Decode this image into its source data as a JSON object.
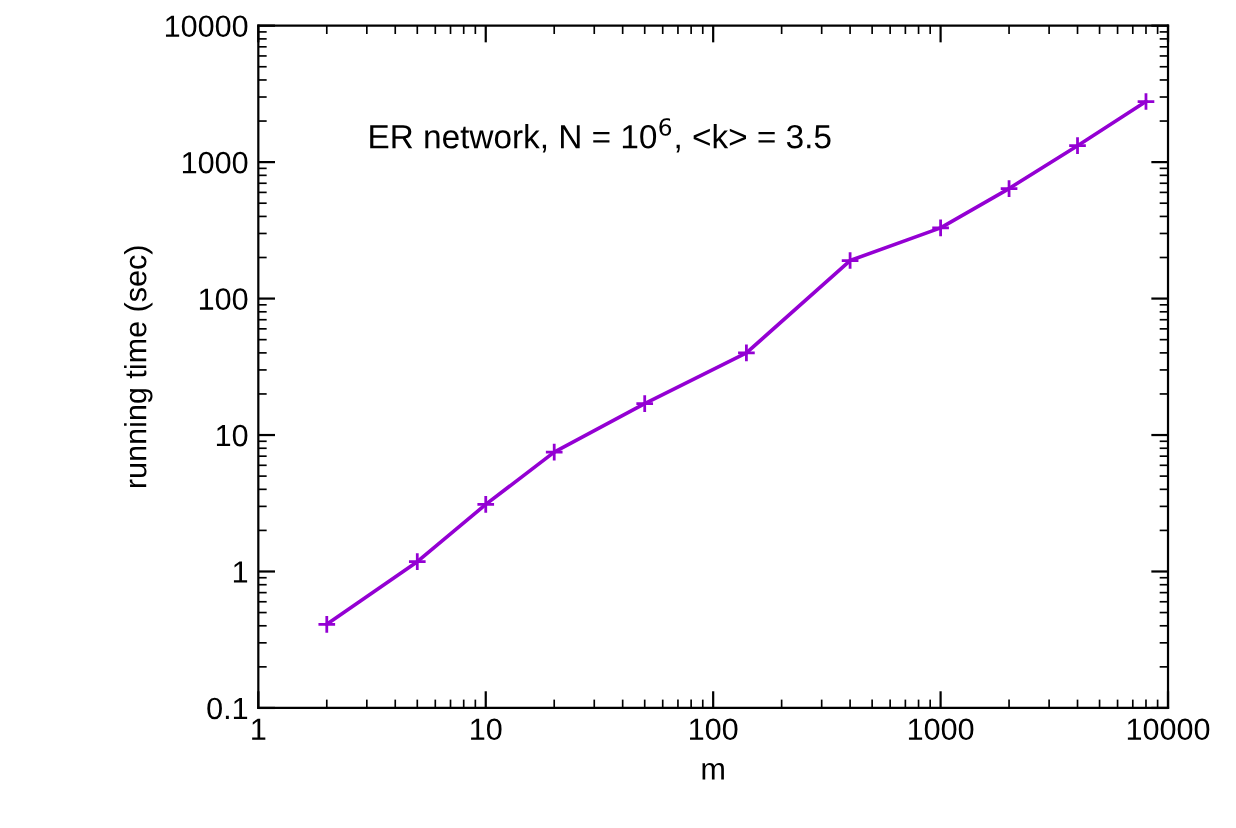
{
  "chart_data": {
    "type": "line",
    "xlabel": "m",
    "ylabel": "running time (sec)",
    "annotations": [
      "ER network, N = 10$^{6}$, <k> = 3.5"
    ],
    "x": [
      2,
      5,
      10,
      20,
      50,
      140,
      400,
      1000,
      2000,
      4000,
      8000
    ],
    "series": [
      {
        "color": "#9400d3",
        "values": [
          0.41,
          1.18,
          3.1,
          7.5,
          17,
          40,
          190,
          330,
          640,
          1320,
          2780
        ]
      }
    ],
    "log": "xy",
    "xlim": [
      1,
      10000
    ],
    "ylim": [
      0.1,
      10000
    ],
    "xticks": [
      1,
      10,
      100,
      1000,
      10000
    ],
    "yticks": [
      0.1,
      1,
      10,
      100,
      1000,
      10000
    ],
    "grid": false,
    "legend": false,
    "marker": "cross",
    "line_style": "solid"
  }
}
